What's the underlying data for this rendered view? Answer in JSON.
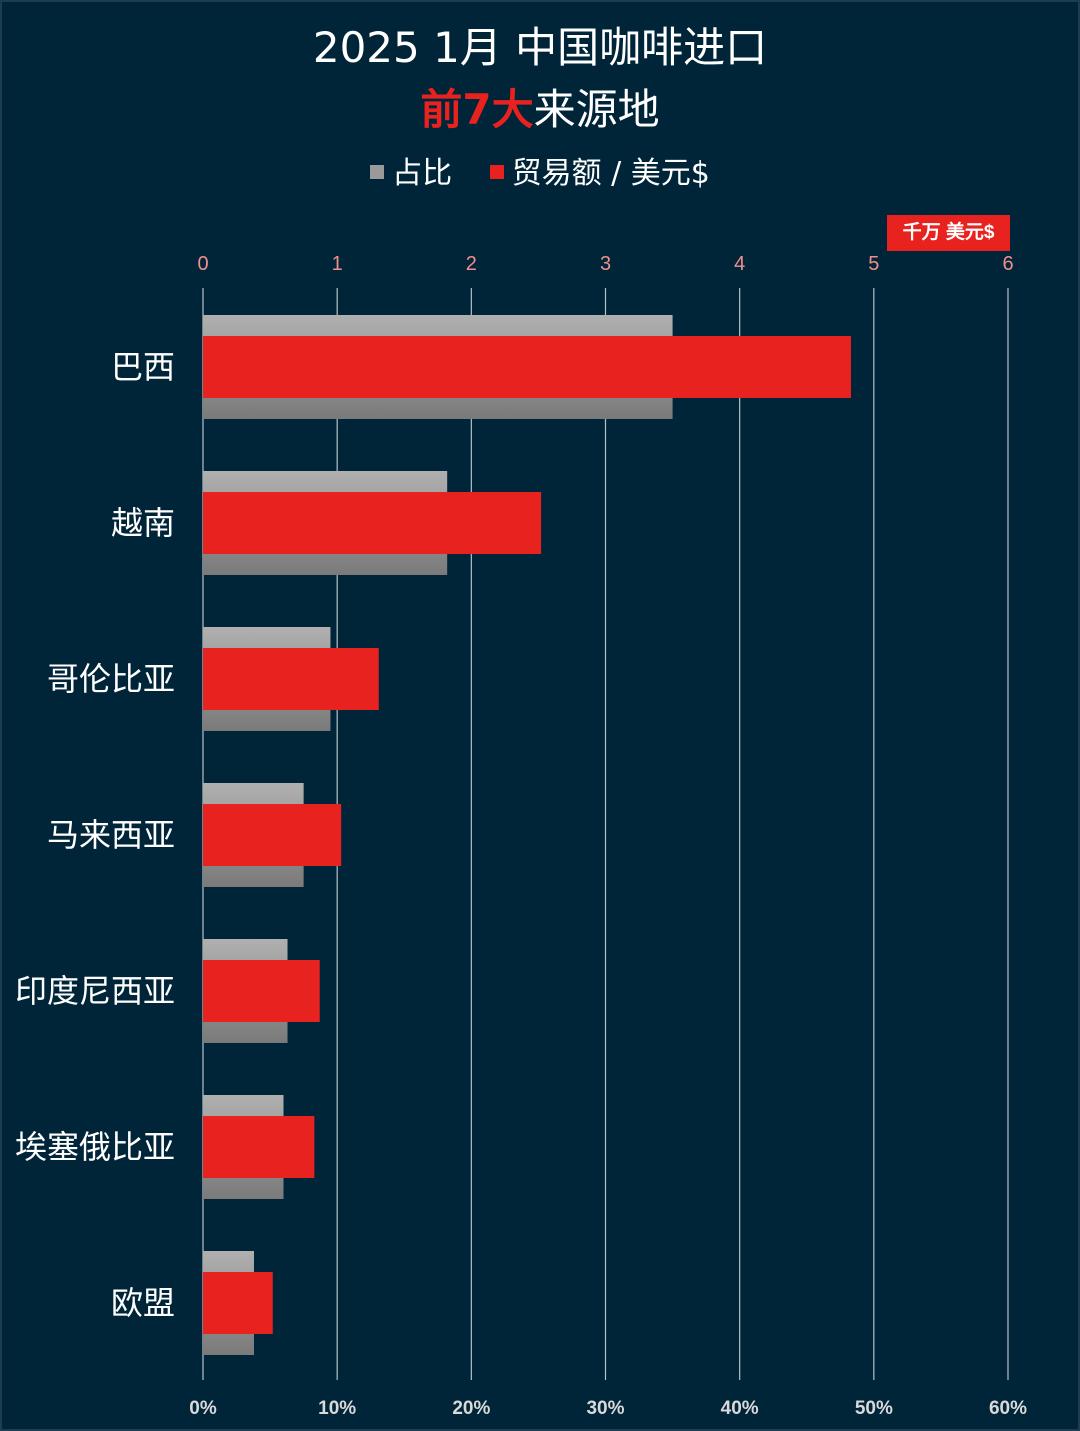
{
  "title": "2025 1月 中国咖啡进口",
  "subtitle": {
    "highlight": "前7大",
    "rest": "来源地"
  },
  "legend": {
    "share_label": "占比",
    "trade_label": "贸易额 / 美元$"
  },
  "unit_badge": "千万 美元$",
  "colors": {
    "background": "#002539",
    "trade_bar": "#e8221f",
    "share_bar": "#9a9a9a",
    "gridline": "#b8c0c8",
    "top_ticks": "#f08f8c"
  },
  "chart_data": {
    "type": "bar",
    "orientation": "horizontal",
    "categories": [
      "巴西",
      "越南",
      "哥伦比亚",
      "马来西亚",
      "印度尼西亚",
      "埃塞俄比亚",
      "欧盟"
    ],
    "series": [
      {
        "name": "占比",
        "axis": "bottom",
        "unit": "%",
        "values": [
          35,
          18.2,
          9.5,
          7.5,
          6.3,
          6.0,
          3.8
        ]
      },
      {
        "name": "贸易额 / 美元$",
        "axis": "top",
        "unit": "千万 美元$",
        "values": [
          4.83,
          2.52,
          1.31,
          1.03,
          0.87,
          0.83,
          0.52
        ]
      }
    ],
    "top_axis": {
      "range": [
        0,
        6
      ],
      "ticks": [
        "0",
        "1",
        "2",
        "3",
        "4",
        "5",
        "6"
      ]
    },
    "bottom_axis": {
      "range": [
        0,
        60
      ],
      "ticks": [
        "0%",
        "10%",
        "20%",
        "30%",
        "40%",
        "50%",
        "60%"
      ]
    },
    "grid": true,
    "legend_position": "top"
  }
}
